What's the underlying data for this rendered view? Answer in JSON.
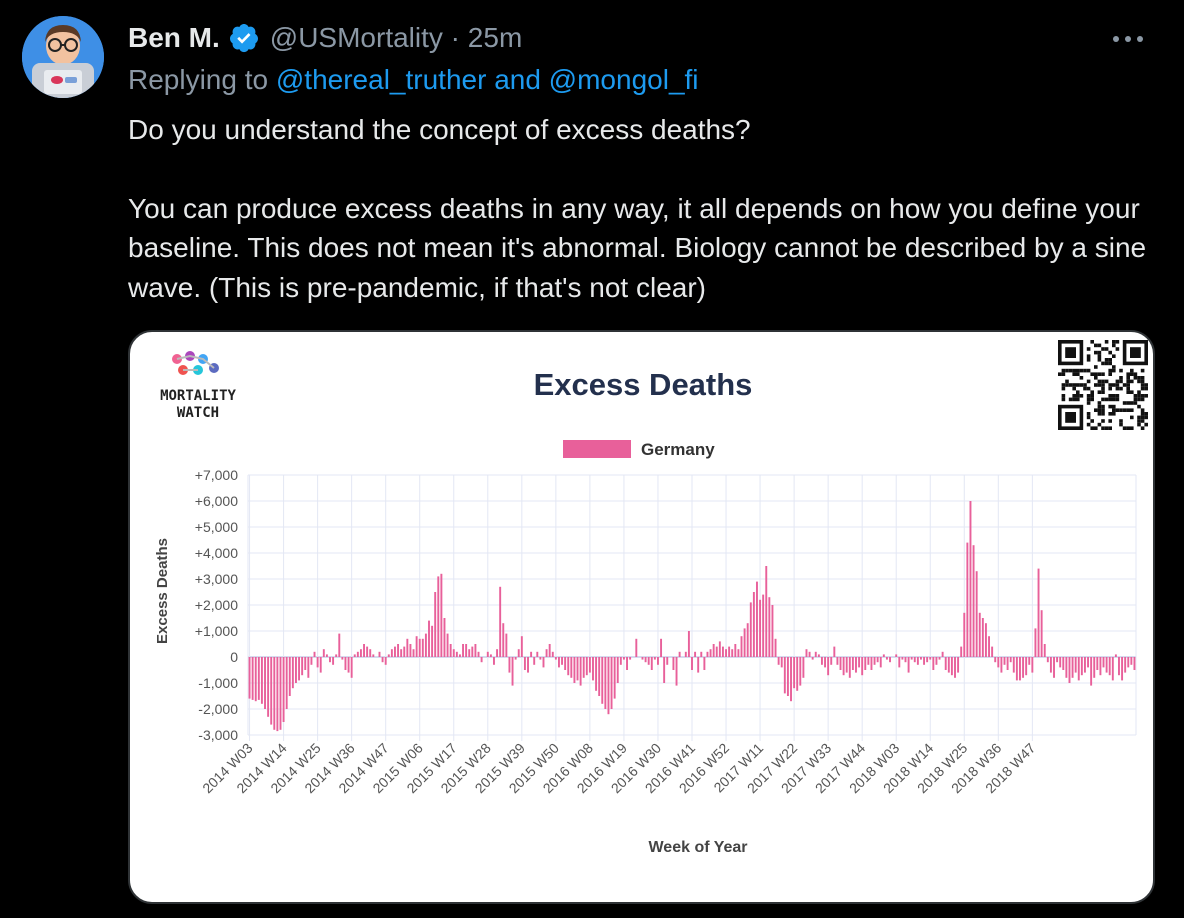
{
  "author": {
    "name": "Ben M.",
    "handle": "@USMortality",
    "time": "25m"
  },
  "reply": {
    "prefix": "Replying to",
    "targets": "@thereal_truther and @mongol_fi"
  },
  "text": {
    "p1": "Do you understand the concept of excess deaths?",
    "p2": "You can produce excess deaths in any way, it all depends on how you define your baseline. This does not mean it's abnormal. Biology cannot be described by a sine wave. (This is pre-pandemic, if that's not clear)"
  },
  "icons": [
    "verified-badge-icon",
    "more-icon",
    "qr-code-icon",
    "mortality-watch-logo"
  ],
  "colors": {
    "background": "#000000",
    "accent": "#1d9bf0",
    "muted": "#8b98a5",
    "bar": "#e8609a",
    "chart_title": "#23304d"
  },
  "logo": {
    "line1": "MORTALITY",
    "line2": "WATCH"
  },
  "chart_data": {
    "type": "bar",
    "title": "Excess Deaths",
    "xlabel": "Week of Year",
    "ylabel": "Excess Deaths",
    "legend": "Germany",
    "legend_position": "top-center",
    "grid": true,
    "ylim": [
      -3000,
      7000
    ],
    "yticks": [
      "+7,000",
      "+6,000",
      "+5,000",
      "+4,000",
      "+3,000",
      "+2,000",
      "+1,000",
      "0",
      "-1,000",
      "-2,000",
      "-3,000"
    ],
    "ytick_values": [
      7000,
      6000,
      5000,
      4000,
      3000,
      2000,
      1000,
      0,
      -1000,
      -2000,
      -3000
    ],
    "xticks": [
      "2014 W03",
      "2014 W14",
      "2014 W25",
      "2014 W36",
      "2014 W47",
      "2015 W06",
      "2015 W17",
      "2015 W28",
      "2015 W39",
      "2015 W50",
      "2016 W08",
      "2016 W19",
      "2016 W30",
      "2016 W41",
      "2016 W52",
      "2017 W11",
      "2017 W22",
      "2017 W33",
      "2017 W44",
      "2018 W03",
      "2018 W14",
      "2018 W25",
      "2018 W36",
      "2018 W47"
    ],
    "xtick_every": 11,
    "first_week": "2014 W03",
    "series": [
      {
        "name": "Germany",
        "values": [
          -1600,
          -1650,
          -1700,
          -1650,
          -1800,
          -2000,
          -2300,
          -2600,
          -2800,
          -2850,
          -2800,
          -2500,
          -2000,
          -1500,
          -1200,
          -1000,
          -900,
          -700,
          -500,
          -800,
          -300,
          200,
          -400,
          -600,
          300,
          100,
          -200,
          -300,
          100,
          900,
          -100,
          -500,
          -600,
          -800,
          100,
          200,
          300,
          500,
          400,
          300,
          100,
          0,
          200,
          -200,
          -300,
          100,
          300,
          400,
          500,
          300,
          400,
          700,
          500,
          300,
          800,
          700,
          700,
          900,
          1400,
          1200,
          2500,
          3100,
          3200,
          1500,
          900,
          500,
          300,
          200,
          100,
          500,
          500,
          300,
          400,
          500,
          200,
          -200,
          0,
          200,
          100,
          -300,
          300,
          2700,
          1300,
          900,
          -600,
          -1100,
          -100,
          300,
          800,
          -500,
          -600,
          200,
          -300,
          200,
          -100,
          -400,
          300,
          500,
          200,
          -100,
          -400,
          -300,
          -500,
          -700,
          -800,
          -1000,
          -900,
          -1100,
          -800,
          -700,
          -600,
          -900,
          -1300,
          -1500,
          -1800,
          -2000,
          -2200,
          -2000,
          -1600,
          -1000,
          -300,
          -100,
          -500,
          -100,
          0,
          700,
          0,
          -100,
          -200,
          -300,
          -500,
          -100,
          -300,
          700,
          -1000,
          -300,
          0,
          -500,
          -1100,
          200,
          0,
          200,
          1000,
          -500,
          200,
          -600,
          200,
          -500,
          200,
          300,
          500,
          400,
          600,
          400,
          300,
          400,
          300,
          500,
          300,
          800,
          1100,
          1300,
          2100,
          2500,
          2900,
          2200,
          2400,
          3500,
          2300,
          2000,
          700,
          -300,
          -400,
          -1400,
          -1500,
          -1700,
          -1200,
          -1300,
          -1100,
          -800,
          300,
          200,
          -100,
          200,
          100,
          -300,
          -400,
          -700,
          -300,
          400,
          -300,
          -500,
          -700,
          -600,
          -800,
          -500,
          -600,
          -400,
          -700,
          -500,
          -300,
          -500,
          -300,
          -200,
          -400,
          100,
          -100,
          -200,
          0,
          100,
          -400,
          -100,
          -200,
          -600,
          -100,
          -200,
          -300,
          -100,
          -300,
          -200,
          -100,
          -500,
          -300,
          -100,
          200,
          -500,
          -600,
          -700,
          -800,
          -600,
          400,
          1700,
          4400,
          6000,
          4300,
          3300,
          1700,
          1500,
          1300,
          800,
          400,
          -200,
          -400,
          -600,
          -300,
          -500,
          -200,
          -600,
          -900,
          -900,
          -800,
          -700,
          -300,
          -600,
          1100,
          3400,
          1800,
          500,
          -200,
          -600,
          -800,
          -200,
          -400,
          -500,
          -800,
          -1000,
          -800,
          -600,
          -900,
          -700,
          -600,
          -400,
          -1100,
          -800,
          -500,
          -700,
          -400,
          -600,
          -700,
          -900,
          100,
          -700,
          -900,
          -600,
          -400,
          -300,
          -500
        ]
      }
    ]
  }
}
